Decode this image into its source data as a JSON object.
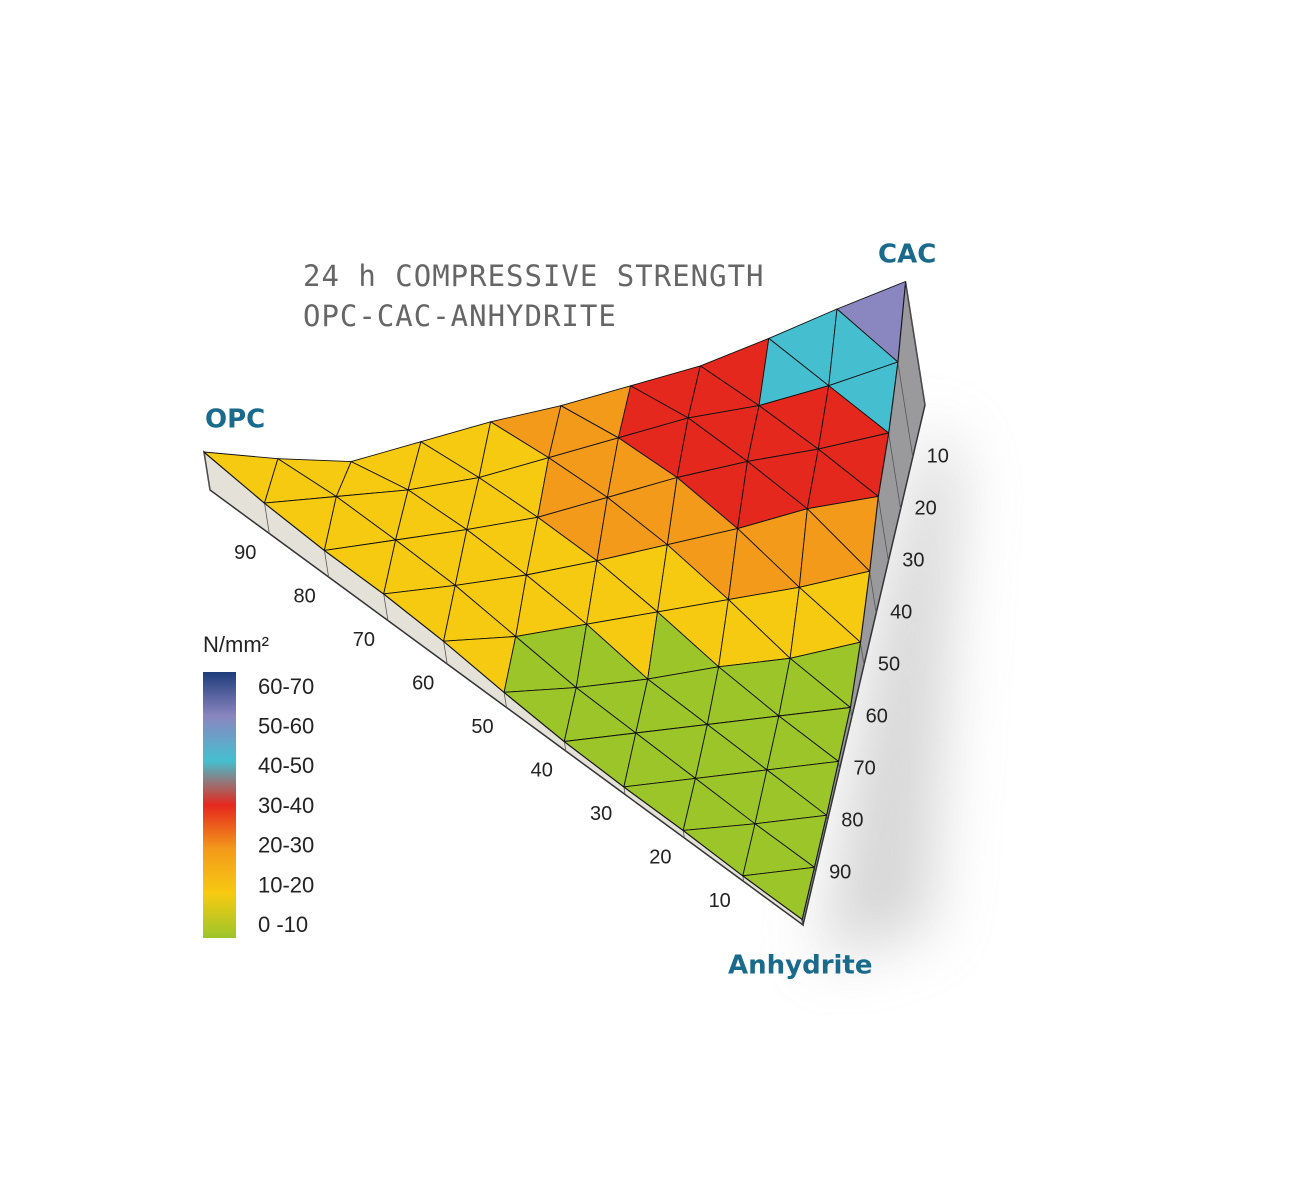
{
  "chart_data": {
    "type": "ternary-surface",
    "title": [
      "24 h COMPRESSIVE STRENGTH",
      "OPC-CAC-ANHYDRITE"
    ],
    "corners": {
      "opc": "OPC",
      "cac": "CAC",
      "anhydrite": "Anhydrite"
    },
    "opc_ticks": [
      90,
      80,
      70,
      60,
      50,
      40,
      30,
      20,
      10
    ],
    "anhydrite_ticks": [
      10,
      20,
      30,
      40,
      50,
      60,
      70,
      80,
      90
    ],
    "surface": {
      "grid": [
        [
          20,
          16,
          14,
          14,
          12,
          8,
          5,
          4,
          4,
          3,
          3
        ],
        [
          12,
          15,
          15,
          14,
          10,
          6,
          5,
          4,
          3,
          3
        ],
        [
          6,
          14,
          16,
          15,
          12,
          6,
          5,
          4,
          3
        ],
        [
          12,
          16,
          18,
          18,
          14,
          8,
          5,
          4
        ],
        [
          18,
          22,
          24,
          22,
          16,
          8,
          5
        ],
        [
          22,
          28,
          30,
          26,
          18,
          12
        ],
        [
          28,
          34,
          34,
          32,
          22
        ],
        [
          34,
          36,
          36,
          34
        ],
        [
          44,
          42,
          40
        ],
        [
          55,
          50
        ],
        [
          65
        ]
      ]
    },
    "legend": {
      "title": "N/mm²",
      "levels": [
        0,
        10,
        20,
        30,
        40,
        50,
        60,
        70
      ],
      "items": [
        {
          "label": "60-70",
          "color": "#1f3c7c"
        },
        {
          "label": "50-60",
          "color": "#8a86c0"
        },
        {
          "label": "40-50",
          "color": "#45bfd0"
        },
        {
          "label": "30-40",
          "color": "#e5281e"
        },
        {
          "label": "20-30",
          "color": "#f39a1a"
        },
        {
          "label": "10-20",
          "color": "#f7ca12"
        },
        {
          "label": "0 -10",
          "color": "#9cc52a"
        }
      ]
    }
  }
}
